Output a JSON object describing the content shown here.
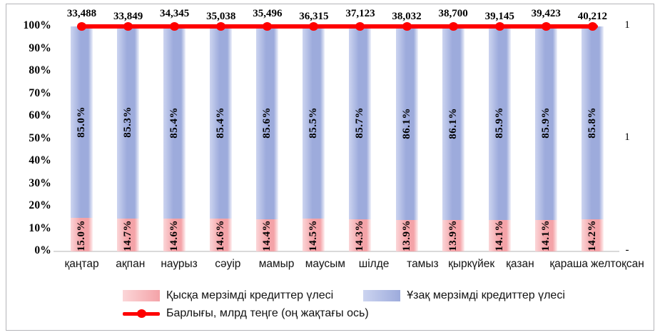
{
  "chart_data": {
    "type": "bar",
    "stacked": true,
    "title": "",
    "grid": false,
    "legend_position": "bottom",
    "categories": [
      "қаңтар",
      "ақпан",
      "наурыз",
      "сәуір",
      "мамыр",
      "маусым",
      "шілде",
      "тамыз",
      "қыркүйек",
      "қазан",
      "қараша",
      "желтоқсан"
    ],
    "series": [
      {
        "name": "Қысқа мерзімді кредиттер үлесі",
        "type": "bar",
        "color": "#f4a3a8",
        "color_light": "#fbd6d8",
        "values_pct": [
          15.0,
          14.7,
          14.6,
          14.6,
          14.4,
          14.5,
          14.3,
          13.9,
          13.9,
          14.1,
          14.1,
          14.2
        ],
        "labels": [
          "15.0%",
          "14.7%",
          "14.6%",
          "14.6%",
          "14.4%",
          "14.5%",
          "14.3%",
          "13.9%",
          "13.9%",
          "14.1%",
          "14.1%",
          "14.2%"
        ]
      },
      {
        "name": "Ұзақ мерзімді кредиттер үлесі",
        "type": "bar",
        "color": "#9dabdc",
        "color_light": "#ccd4f0",
        "values_pct": [
          85.0,
          85.3,
          85.4,
          85.4,
          85.6,
          85.5,
          85.7,
          86.1,
          86.1,
          85.9,
          85.9,
          85.8
        ],
        "labels": [
          "85.0%",
          "85.3%",
          "85.4%",
          "85.4%",
          "85.6%",
          "85.5%",
          "85.7%",
          "86.1%",
          "86.1%",
          "85.9%",
          "85.9%",
          "85.8%"
        ]
      },
      {
        "name": "Барлығы, млрд теңге (оң жақтағы ось)",
        "type": "line",
        "axis": "right",
        "color": "#fe0000",
        "values": [
          33488,
          33849,
          34345,
          35038,
          35496,
          36315,
          37123,
          38032,
          38700,
          39145,
          39423,
          40212
        ],
        "labels": [
          "33,488",
          "33,849",
          "34,345",
          "35,038",
          "35,496",
          "36,315",
          "37,123",
          "38,032",
          "38,700",
          "39,145",
          "39,423",
          "40,212"
        ]
      }
    ],
    "y_axis_left": {
      "min": 0,
      "max": 100,
      "unit": "%",
      "ticks": [
        "100%",
        "90%",
        "80%",
        "70%",
        "60%",
        "50%",
        "40%",
        "30%",
        "20%",
        "10%",
        "0%"
      ]
    },
    "y_axis_right": {
      "tick_labels": [
        "1",
        "1",
        "-"
      ]
    }
  }
}
